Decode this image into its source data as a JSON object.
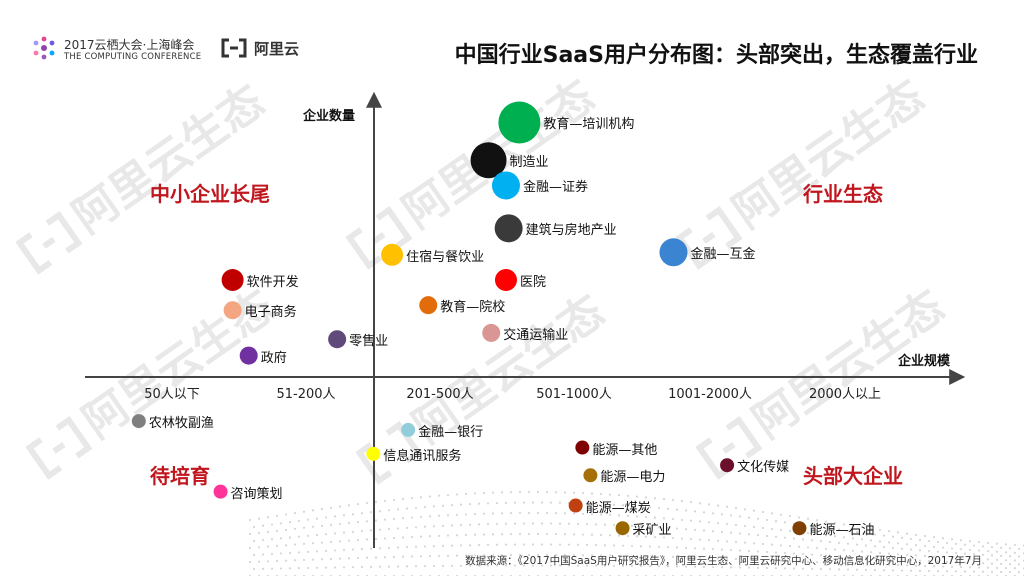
{
  "header": {
    "conference_title": "2017云栖大会·上海峰会",
    "conference_subtitle": "THE COMPUTING CONFERENCE",
    "brand": "阿里云",
    "page_title": "中国行业SaaS用户分布图：头部突出，生态覆盖行业"
  },
  "watermark_text": "阿里云生态",
  "quadrants": {
    "top_left": "中小企业长尾",
    "top_right": "行业生态",
    "bottom_left": "待培育",
    "bottom_right": "头部大企业"
  },
  "axes": {
    "y_title": "企业数量",
    "x_title": "企业规模",
    "x_ticks": [
      "50人以下",
      "51-200人",
      "201-500人",
      "501-1000人",
      "1001-2000人",
      "2000人以上"
    ]
  },
  "chart_data": {
    "type": "scatter",
    "xlabel": "企业规模",
    "ylabel": "企业数量",
    "categories": [
      "50人以下",
      "51-200人",
      "201-500人",
      "501-1000人",
      "1001-2000人",
      "2000人以上"
    ],
    "points": [
      {
        "label": "教育—培训机构",
        "x": 3.07,
        "y": 2.02,
        "size": "xl",
        "color": "#00b050"
      },
      {
        "label": "制造业",
        "x": 2.84,
        "y": 1.72,
        "size": "l",
        "color": "#111111"
      },
      {
        "label": "金融—证券",
        "x": 2.97,
        "y": 1.52,
        "size": "m",
        "color": "#00b0f0"
      },
      {
        "label": "建筑与房地产业",
        "x": 2.99,
        "y": 1.18,
        "size": "m",
        "color": "#3a3a3a"
      },
      {
        "label": "金融—互金",
        "x": 4.22,
        "y": 0.99,
        "size": "m",
        "color": "#3b84d1"
      },
      {
        "label": "住宿与餐饮业",
        "x": 2.12,
        "y": 0.97,
        "size": "s",
        "color": "#ffc000"
      },
      {
        "label": "软件开发",
        "x": 0.93,
        "y": 0.77,
        "size": "s",
        "color": "#c00000"
      },
      {
        "label": "医院",
        "x": 2.97,
        "y": 0.77,
        "size": "s",
        "color": "#ff0000"
      },
      {
        "label": "教育—院校",
        "x": 2.39,
        "y": 0.57,
        "size": "xs",
        "color": "#e36c0a"
      },
      {
        "label": "电子商务",
        "x": 0.93,
        "y": 0.53,
        "size": "xs",
        "color": "#f4a582"
      },
      {
        "label": "交通运输业",
        "x": 2.86,
        "y": 0.35,
        "size": "xs",
        "color": "#da9694"
      },
      {
        "label": "零售业",
        "x": 1.71,
        "y": 0.3,
        "size": "xs",
        "color": "#604a7b"
      },
      {
        "label": "政府",
        "x": 1.05,
        "y": 0.17,
        "size": "xs",
        "color": "#7030a0"
      },
      {
        "label": "农林牧副渔",
        "x": 0.23,
        "y": -0.35,
        "size": "xxs",
        "color": "#7f7f7f"
      },
      {
        "label": "金融—银行",
        "x": 2.24,
        "y": -0.42,
        "size": "xxs",
        "color": "#92cddc"
      },
      {
        "label": "能源—其他",
        "x": 3.54,
        "y": -0.56,
        "size": "xxs",
        "color": "#7f0000"
      },
      {
        "label": "信息通讯服务",
        "x": 1.98,
        "y": -0.61,
        "size": "xxs",
        "color": "#ffff00"
      },
      {
        "label": "文化传媒",
        "x": 4.62,
        "y": -0.7,
        "size": "xxs",
        "color": "#6b0f2b"
      },
      {
        "label": "能源—电力",
        "x": 3.6,
        "y": -0.78,
        "size": "xxs",
        "color": "#a5700a"
      },
      {
        "label": "咨询策划",
        "x": 0.84,
        "y": -0.91,
        "size": "xxs",
        "color": "#ff3399"
      },
      {
        "label": "能源—煤炭",
        "x": 3.49,
        "y": -1.02,
        "size": "xxs",
        "color": "#c0400f"
      },
      {
        "label": "采矿业",
        "x": 3.84,
        "y": -1.2,
        "size": "xxs",
        "color": "#996600"
      },
      {
        "label": "能源—石油",
        "x": 5.16,
        "y": -1.2,
        "size": "xxs",
        "color": "#7f3f00"
      }
    ]
  },
  "source_note": "数据来源：《2017中国SaaS用户研究报告》，阿里云生态、阿里云研究中心、移动信息化研究中心，2017年7月"
}
